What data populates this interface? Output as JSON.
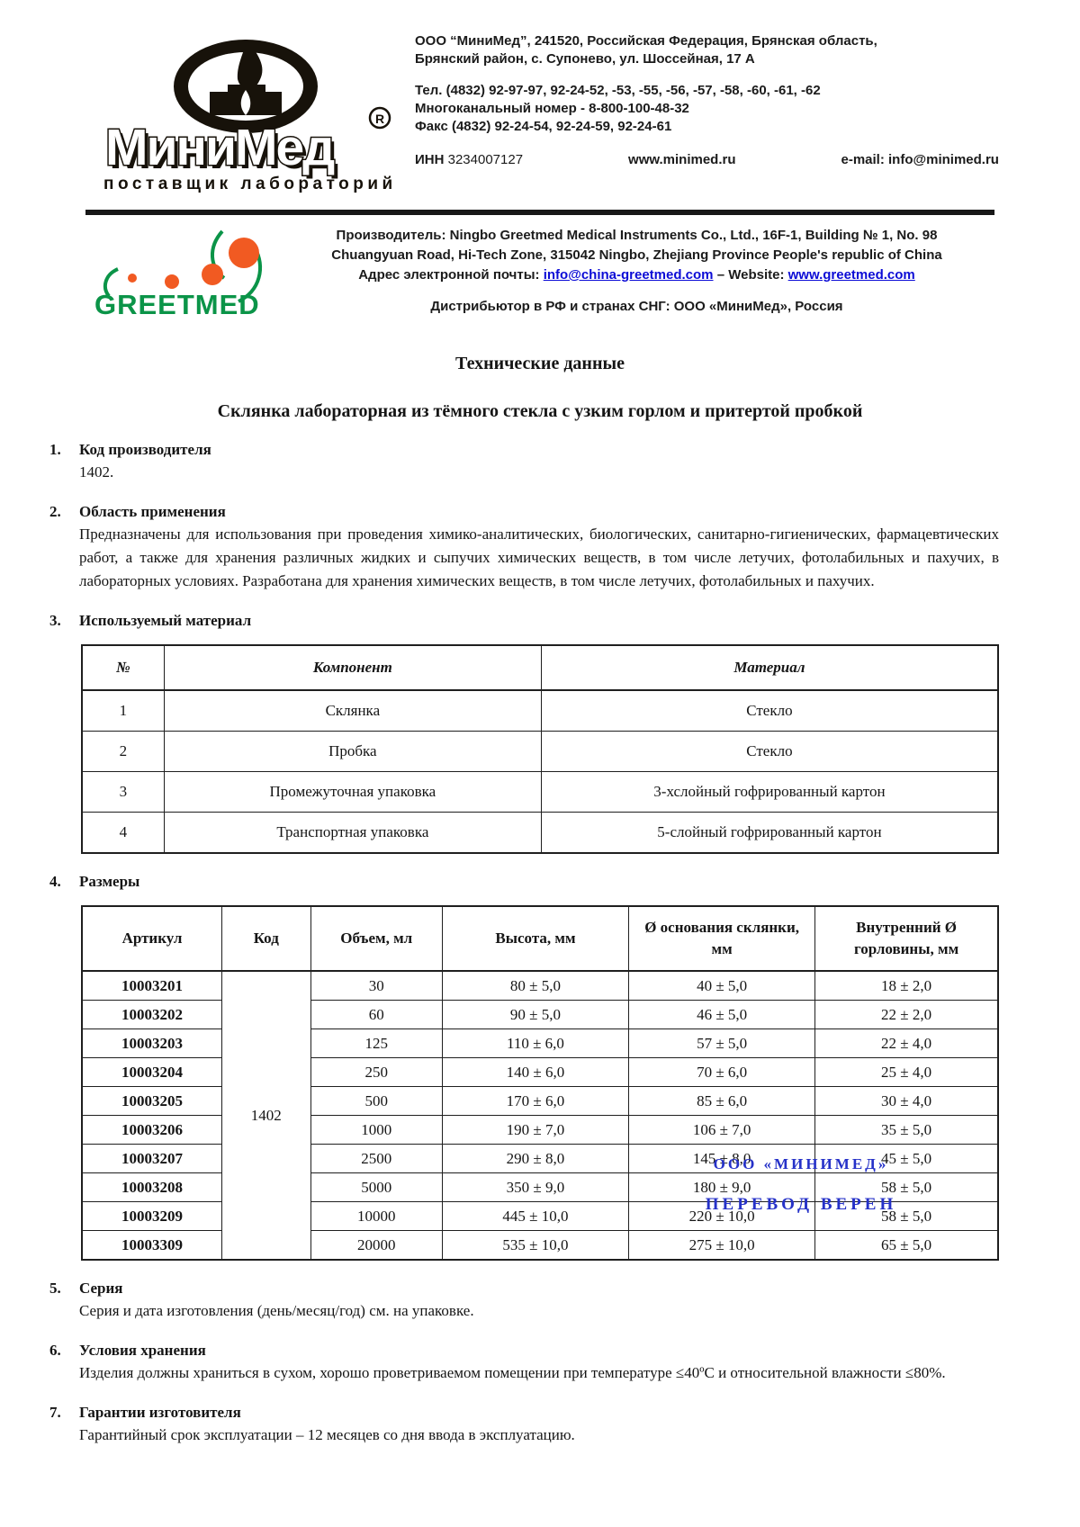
{
  "header": {
    "logo": {
      "brand": "МиниМед",
      "reg": "®",
      "tagline": "поставщик лабораторий"
    },
    "address_line1": "ООО “МиниМед”, 241520, Российская Федерация, Брянская область,",
    "address_line2": "Брянский район, с. Супонево, ул. Шоссейная, 17 А",
    "phone_line1": "Тел. (4832) 92-97-97, 92-24-52, -53, -55, -56, -57, -58, -60, -61, -62",
    "phone_line2": "Многоканальный номер - 8-800-100-48-32",
    "phone_line3": "Факс (4832) 92-24-54, 92-24-59, 92-24-61",
    "inn_label": "ИНН",
    "inn_value": "3234007127",
    "website": "www.minimed.ru",
    "email": "e-mail: info@minimed.ru"
  },
  "manufacturer": {
    "logo_text": "GREETMED",
    "line1": "Производитель: Ningbo Greetmed Medical Instruments Co., Ltd., 16F-1, Building № 1, No. 98",
    "line2": "Chuangyuan Road, Hi-Tech Zone, 315042 Ningbo, Zhejiang Province People's republic of China",
    "email_prefix": "Адрес электронной почты: ",
    "email_link": "info@china-greetmed.com",
    "separator": " – ",
    "website_prefix": "Website: ",
    "website_link": "www.greetmed.com",
    "distributor": "Дистрибьютор в РФ и странах СНГ: ООО «МиниМед», Россия"
  },
  "document": {
    "title": "Технические данные",
    "subtitle": "Склянка лабораторная из тёмного стекла с узким горлом и притертой пробкой",
    "sections": {
      "s1": {
        "num": "1.",
        "heading": "Код производителя",
        "body": "1402."
      },
      "s2": {
        "num": "2.",
        "heading": "Область применения",
        "body": "Предназначены для использования при проведения химико-аналитических, биологических, санитарно-гигиенических, фармацевтических работ, а также для хранения различных жидких и сыпучих химических веществ, в том числе летучих, фотолабильных и пахучих, в лабораторных условиях. Разработана для хранения химических веществ, в том числе летучих, фотолабильных и пахучих."
      },
      "s3": {
        "num": "3.",
        "heading": "Используемый материал"
      },
      "s4": {
        "num": "4.",
        "heading": "Размеры"
      },
      "s5": {
        "num": "5.",
        "heading": "Серия",
        "body": "Серия и дата изготовления (день/месяц/год) см. на упаковке."
      },
      "s6": {
        "num": "6.",
        "heading": "Условия хранения",
        "body": "Изделия должны храниться в сухом, хорошо проветриваемом помещении при температуре ≤40ºС и относительной влажности ≤80%."
      },
      "s7": {
        "num": "7.",
        "heading": "Гарантии изготовителя",
        "body": "Гарантийный срок эксплуатации – 12 месяцев со дня ввода в эксплуатацию."
      }
    }
  },
  "materials_table": {
    "headers": [
      "№",
      "Компонент",
      "Материал"
    ],
    "rows": [
      [
        "1",
        "Склянка",
        "Стекло"
      ],
      [
        "2",
        "Пробка",
        "Стекло"
      ],
      [
        "3",
        "Промежуточная упаковка",
        "3-хслойный гофрированный картон"
      ],
      [
        "4",
        "Транспортная упаковка",
        "5-слойный гофрированный картон"
      ]
    ]
  },
  "dimensions_table": {
    "headers": [
      "Артикул",
      "Код",
      "Объем, мл",
      "Высота, мм",
      "Ø основания склянки, мм",
      "Внутренний Ø горловины, мм"
    ],
    "code": "1402",
    "rows": [
      {
        "article": "10003201",
        "volume": "30",
        "height": "80 ± 5,0",
        "base": "40 ± 5,0",
        "neck": "18 ± 2,0"
      },
      {
        "article": "10003202",
        "volume": "60",
        "height": "90 ± 5,0",
        "base": "46 ± 5,0",
        "neck": "22 ± 2,0"
      },
      {
        "article": "10003203",
        "volume": "125",
        "height": "110 ± 6,0",
        "base": "57 ± 5,0",
        "neck": "22 ± 4,0"
      },
      {
        "article": "10003204",
        "volume": "250",
        "height": "140 ± 6,0",
        "base": "70 ± 6,0",
        "neck": "25 ± 4,0"
      },
      {
        "article": "10003205",
        "volume": "500",
        "height": "170 ± 6,0",
        "base": "85 ± 6,0",
        "neck": "30 ± 4,0"
      },
      {
        "article": "10003206",
        "volume": "1000",
        "height": "190 ± 7,0",
        "base": "106 ± 7,0",
        "neck": "35 ± 5,0"
      },
      {
        "article": "10003207",
        "volume": "2500",
        "height": "290 ± 8,0",
        "base": "145 ± 8,0",
        "neck": "45 ± 5,0"
      },
      {
        "article": "10003208",
        "volume": "5000",
        "height": "350 ± 9,0",
        "base": "180 ± 9,0",
        "neck": "58 ± 5,0"
      },
      {
        "article": "10003209",
        "volume": "10000",
        "height": "445 ± 10,0",
        "base": "220 ± 10,0",
        "neck": "58 ± 5,0"
      },
      {
        "article": "10003309",
        "volume": "20000",
        "height": "535 ± 10,0",
        "base": "275 ± 10,0",
        "neck": "65 ± 5,0"
      }
    ]
  },
  "stamp": {
    "line1": "ООО «МИНИМЕД»",
    "line2": "ПЕРЕВОД ВЕРЕН",
    "color": "#2531c8"
  },
  "brand_colors": {
    "greetmed_green": "#0b9448",
    "greetmed_orange": "#f15a22",
    "link_blue": "#0b0bd6",
    "logo_black": "#17120a"
  }
}
